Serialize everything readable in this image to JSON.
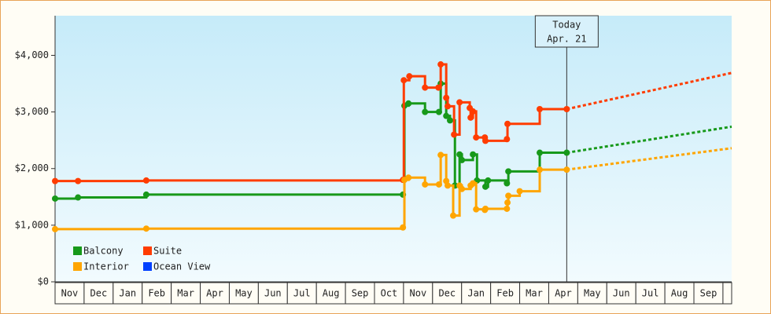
{
  "chart_data": {
    "type": "step",
    "xlim": [
      0,
      23.3
    ],
    "ylim": [
      0,
      4700
    ],
    "yticks": [
      {
        "value": 0,
        "label": "$0"
      },
      {
        "value": 1000,
        "label": "$1,000"
      },
      {
        "value": 2000,
        "label": "$2,000"
      },
      {
        "value": 3000,
        "label": "$3,000"
      },
      {
        "value": 4000,
        "label": "$4,000"
      }
    ],
    "month_labels": [
      "Nov",
      "Dec",
      "Jan",
      "Feb",
      "Mar",
      "Apr",
      "May",
      "Jun",
      "Jul",
      "Aug",
      "Sep",
      "Oct",
      "Nov",
      "Dec",
      "Jan",
      "Feb",
      "Mar",
      "Apr",
      "May",
      "Jun",
      "Jul",
      "Aug",
      "Sep"
    ],
    "today": {
      "x": 17.62,
      "label": [
        "Today",
        "Apr. 21"
      ]
    },
    "series": [
      {
        "name": "Balcony",
        "color": "#17991a",
        "x": [
          0,
          0.79,
          3.14,
          11.98,
          12.03,
          12.17,
          12.74,
          13.22,
          13.28,
          13.47,
          13.6,
          13.77,
          13.93,
          14.01,
          14.39,
          14.53,
          14.82,
          14.91,
          15.56,
          15.61,
          16.69,
          17.62
        ],
        "values": [
          1470,
          1490,
          1540,
          1540,
          3110,
          3150,
          3000,
          3000,
          3500,
          2930,
          2850,
          1700,
          2250,
          2150,
          2250,
          1790,
          1680,
          1790,
          1740,
          1950,
          2280,
          2280
        ],
        "forecast": {
          "x": [
            17.62,
            23.3
          ],
          "values": [
            2280,
            2740
          ]
        }
      },
      {
        "name": "Suite",
        "color": "#ff3c00",
        "x": [
          0,
          0.79,
          3.14,
          11.98,
          12.01,
          12.2,
          12.74,
          13.2,
          13.28,
          13.47,
          13.52,
          13.74,
          13.93,
          14.28,
          14.31,
          14.39,
          14.5,
          14.8,
          14.82,
          15.56,
          15.58,
          16.69,
          17.62
        ],
        "values": [
          1780,
          1780,
          1790,
          1800,
          3560,
          3630,
          3430,
          3430,
          3840,
          3250,
          3100,
          2600,
          3170,
          3070,
          2900,
          3010,
          2550,
          2550,
          2490,
          2520,
          2790,
          3050,
          3050
        ],
        "forecast": {
          "x": [
            17.62,
            23.3
          ],
          "values": [
            3050,
            3690
          ]
        }
      },
      {
        "name": "Interior",
        "color": "#ffa500",
        "x": [
          0,
          3.14,
          11.98,
          12.03,
          12.17,
          12.74,
          13.22,
          13.28,
          13.47,
          13.52,
          13.71,
          13.93,
          14.01,
          14.31,
          14.39,
          14.5,
          14.8,
          14.82,
          15.56,
          15.58,
          15.61,
          16.0,
          16.69,
          17.62
        ],
        "values": [
          930,
          940,
          960,
          1800,
          1840,
          1720,
          1720,
          2240,
          1780,
          1700,
          1170,
          1700,
          1640,
          1700,
          1740,
          1280,
          1270,
          1290,
          1290,
          1400,
          1520,
          1600,
          1980,
          1980
        ],
        "forecast": {
          "x": [
            17.62,
            23.3
          ],
          "values": [
            1980,
            2360
          ]
        }
      },
      {
        "name": "Ocean View",
        "color": "#0040ff",
        "x": [],
        "values": []
      }
    ]
  }
}
